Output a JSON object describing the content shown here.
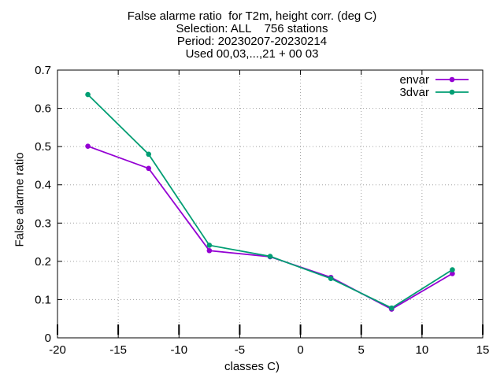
{
  "chart_data": {
    "type": "line",
    "title_lines": [
      "False alarme ratio  for T2m, height corr. (deg C)",
      "Selection: ALL    756 stations",
      "Period: 20230207-20230214",
      "Used 00,03,...,21 + 00 03"
    ],
    "xlabel": "classes C)",
    "ylabel": "False alarme ratio",
    "xlim": [
      -20,
      15
    ],
    "ylim": [
      0,
      0.7
    ],
    "xticks": [
      -20,
      -15,
      -10,
      -5,
      0,
      5,
      10,
      15
    ],
    "yticks": [
      0,
      0.1,
      0.2,
      0.3,
      0.4,
      0.5,
      0.6,
      0.7
    ],
    "xtick_labels": [
      "-20",
      "-15",
      "-10",
      "-5",
      "0",
      "5",
      "10",
      "15"
    ],
    "ytick_labels": [
      "0",
      "0.1",
      "0.2",
      "0.3",
      "0.4",
      "0.5",
      "0.6",
      "0.7"
    ],
    "grid": true,
    "legend_position": "top-right",
    "x": [
      -17.5,
      -12.5,
      -7.5,
      -2.5,
      2.5,
      7.5,
      12.5
    ],
    "series": [
      {
        "name": "envar",
        "color": "#9400d3",
        "values": [
          0.501,
          0.443,
          0.228,
          0.212,
          0.158,
          0.075,
          0.168
        ]
      },
      {
        "name": "3dvar",
        "color": "#009e73",
        "values": [
          0.636,
          0.48,
          0.242,
          0.213,
          0.155,
          0.078,
          0.178
        ]
      }
    ]
  }
}
